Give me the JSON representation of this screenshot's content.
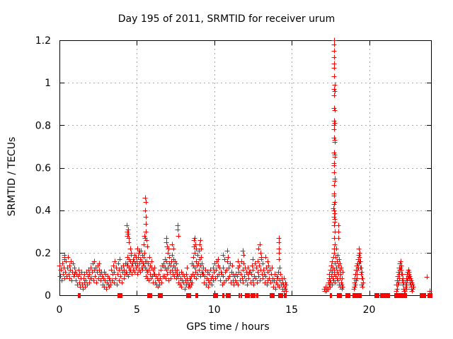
{
  "chart_data": {
    "type": "scatter",
    "title": "Day 195 of 2011, SRMTID for receiver urum",
    "xlabel": "GPS time / hours",
    "ylabel": "SRMTID / TECUs",
    "xlim": [
      0,
      24
    ],
    "ylim": [
      0,
      1.2
    ],
    "grid": true,
    "legend": "none",
    "marker": "plus",
    "marker_color": "#ff0000",
    "grid_color": "#a8a8a8",
    "axis_color": "#000000",
    "background_color": "#ffffff",
    "x_ticks": [
      {
        "v": 0,
        "l": "0"
      },
      {
        "v": 5,
        "l": "5"
      },
      {
        "v": 10,
        "l": "10"
      },
      {
        "v": 15,
        "l": "15"
      },
      {
        "v": 20,
        "l": "20"
      }
    ],
    "y_ticks": [
      {
        "v": 0,
        "l": "0"
      },
      {
        "v": 0.2,
        "l": "0.2"
      },
      {
        "v": 0.4,
        "l": "0.4"
      },
      {
        "v": 0.6,
        "l": "0.6"
      },
      {
        "v": 0.8,
        "l": "0.8"
      },
      {
        "v": 1,
        "l": "1"
      },
      {
        "v": 1.2,
        "l": "1.2"
      }
    ],
    "segments": [
      {
        "x0": 0.02,
        "dx": 0.04,
        "y": [
          0.14,
          0.09,
          0.12,
          0.07,
          0.15,
          0.1,
          0.13,
          0.08,
          0.17,
          0.11,
          0.16,
          0.09,
          0.13,
          0.18,
          0.1,
          0.14,
          0.08,
          0.12,
          0.16,
          0.07,
          0.11,
          0.15,
          0.09,
          0.13,
          0.1
        ]
      },
      {
        "x0": 1.02,
        "dx": 0.04,
        "y": [
          0.11,
          0.07,
          0.1,
          0.05,
          0.09,
          0.12,
          0.06,
          0.1,
          0.04,
          0.08,
          0.11,
          0.05,
          0.03,
          0.08,
          0.06,
          0.1,
          0.04,
          0.07,
          0.11,
          0.05,
          0.09,
          0.12,
          0.06,
          0.1,
          0.08
        ]
      },
      {
        "x0": 2.02,
        "dx": 0.04,
        "y": [
          0.13,
          0.08,
          0.11,
          0.15,
          0.07,
          0.12,
          0.16,
          0.09,
          0.13,
          0.06,
          0.11,
          0.14,
          0.08,
          0.12,
          0.15,
          0.1,
          0.07,
          0.11
        ]
      },
      {
        "x0": 2.74,
        "dx": 0.04,
        "y": [
          0.09,
          0.05,
          0.08,
          0.11,
          0.04,
          0.07,
          0.1,
          0.03,
          0.06,
          0.09,
          0.05,
          0.08,
          0.04,
          0.07,
          0.05
        ]
      },
      {
        "x0": 3.34,
        "dx": 0.04,
        "y": [
          0.12,
          0.07,
          0.1,
          0.14,
          0.06,
          0.11,
          0.16,
          0.08,
          0.13,
          0.05,
          0.1,
          0.15,
          0.07,
          0.12,
          0.17,
          0.09,
          0.13,
          0.06,
          0.11,
          0.14,
          0.08,
          0.12,
          0.1,
          0.15,
          0.11
        ]
      },
      {
        "x0": 4.32,
        "dx": 0.03,
        "y": [
          0.15,
          0.1,
          0.14,
          0.18,
          0.09,
          0.13,
          0.17,
          0.11,
          0.16,
          0.12,
          0.19,
          0.14,
          0.1,
          0.15
        ]
      },
      {
        "x0": 4.74,
        "dx": 0.03,
        "y": [
          0.17,
          0.12,
          0.16,
          0.19,
          0.11,
          0.15,
          0.18,
          0.13,
          0.16,
          0.1,
          0.14,
          0.18,
          0.12,
          0.2,
          0.15,
          0.11,
          0.17,
          0.21,
          0.13,
          0.16,
          0.19,
          0.12,
          0.15,
          0.18,
          0.14,
          0.2,
          0.16
        ]
      },
      {
        "x0": 5.54,
        "dx": 0.03,
        "y": [
          0.13,
          0.09,
          0.12,
          0.16,
          0.08,
          0.11,
          0.15,
          0.07,
          0.12,
          0.18,
          0.1,
          0.14,
          0.08,
          0.13,
          0.16,
          0.09,
          0.12,
          0.06,
          0.1,
          0.13
        ]
      },
      {
        "x0": 6.14,
        "dx": 0.04,
        "y": [
          0.1,
          0.06,
          0.09,
          0.05,
          0.08,
          0.04,
          0.07,
          0.1,
          0.05,
          0.08,
          0.12,
          0.06,
          0.14,
          0.09,
          0.15
        ]
      },
      {
        "x0": 6.74,
        "dx": 0.03,
        "y": [
          0.14,
          0.09,
          0.13,
          0.17,
          0.08,
          0.12,
          0.16,
          0.1,
          0.2,
          0.13,
          0.07,
          0.15,
          0.18,
          0.11,
          0.14,
          0.08,
          0.16,
          0.12,
          0.19,
          0.1,
          0.14,
          0.17,
          0.09,
          0.13,
          0.16,
          0.11,
          0.15,
          0.08,
          0.12,
          0.1
        ]
      },
      {
        "x0": 7.64,
        "dx": 0.04,
        "y": [
          0.09,
          0.06,
          0.1,
          0.05,
          0.08,
          0.11,
          0.04,
          0.07,
          0.1,
          0.06,
          0.09,
          0.03,
          0.07,
          0.1,
          0.05,
          0.08,
          0.06,
          0.04
        ]
      },
      {
        "x0": 8.36,
        "dx": 0.03,
        "y": [
          0.05,
          0.08,
          0.04,
          0.07,
          0.05,
          0.09,
          0.06
        ]
      },
      {
        "x0": 8.57,
        "dx": 0.03,
        "y": [
          0.15,
          0.1,
          0.14,
          0.18,
          0.09,
          0.13,
          0.2,
          0.11,
          0.16,
          0.08,
          0.14,
          0.19,
          0.1,
          0.15,
          0.21,
          0.12,
          0.17,
          0.09,
          0.14,
          0.18,
          0.11,
          0.15,
          0.1,
          0.13
        ]
      },
      {
        "x0": 9.3,
        "dx": 0.04,
        "y": [
          0.1,
          0.06,
          0.09,
          0.12,
          0.05,
          0.08,
          0.11,
          0.04,
          0.07,
          0.1,
          0.06,
          0.12,
          0.08,
          0.05,
          0.09,
          0.13,
          0.07,
          0.11,
          0.15,
          0.08,
          0.12,
          0.16,
          0.09,
          0.14,
          0.17,
          0.1,
          0.13,
          0.07,
          0.11
        ]
      },
      {
        "x0": 10.46,
        "dx": 0.04,
        "y": [
          0.1,
          0.05,
          0.09,
          0.13,
          0.06,
          0.17,
          0.11,
          0.07,
          0.12,
          0.16,
          0.08,
          0.18,
          0.13,
          0.09,
          0.15,
          0.06,
          0.11,
          0.14,
          0.07,
          0.1,
          0.05,
          0.09,
          0.07
        ]
      },
      {
        "x0": 11.38,
        "dx": 0.04,
        "y": [
          0.1,
          0.06,
          0.09,
          0.13,
          0.05,
          0.11,
          0.14,
          0.07,
          0.1,
          0.16,
          0.08,
          0.12,
          0.06,
          0.15,
          0.09,
          0.13,
          0.07,
          0.11,
          0.05,
          0.1,
          0.13,
          0.08,
          0.11
        ]
      },
      {
        "x0": 12.3,
        "dx": 0.04,
        "y": [
          0.11,
          0.06,
          0.1,
          0.14,
          0.07,
          0.12,
          0.05,
          0.09,
          0.15,
          0.08,
          0.13,
          0.06,
          0.11,
          0.16,
          0.09,
          0.14,
          0.07,
          0.12,
          0.17,
          0.1,
          0.15,
          0.08,
          0.12
        ]
      },
      {
        "x0": 13.22,
        "dx": 0.04,
        "y": [
          0.1,
          0.06,
          0.09,
          0.13,
          0.05,
          0.11,
          0.07,
          0.14,
          0.08,
          0.12,
          0.06,
          0.1,
          0.13,
          0.07
        ]
      },
      {
        "x0": 13.78,
        "dx": 0.04,
        "y": [
          0.08,
          0.04,
          0.07,
          0.1,
          0.03,
          0.06,
          0.09,
          0.05,
          0.08,
          0.11,
          0.04,
          0.07,
          0.1,
          0.05,
          0.08
        ]
      },
      {
        "x0": 14.38,
        "dx": 0.03,
        "y": [
          0.06,
          0.03,
          0.05,
          0.08,
          0.02,
          0.04,
          0.06,
          0.03,
          0.05,
          0.02
        ]
      },
      {
        "x0": 17.08,
        "dx": 0.05,
        "y": [
          0.03,
          0.02,
          0.04,
          0.02,
          0.03
        ]
      },
      {
        "x0": 17.36,
        "dx": 0.02,
        "y": [
          0.06,
          0.03,
          0.08,
          0.05,
          0.1,
          0.04,
          0.07,
          0.12,
          0.06,
          0.09,
          0.14,
          0.05,
          0.11,
          0.16,
          0.08,
          0.13,
          0.18,
          0.07,
          0.12,
          0.2,
          0.1,
          0.15,
          0.06,
          0.18,
          0.09,
          0.13,
          0.22,
          0.08,
          0.16,
          0.11,
          0.19,
          0.07,
          0.14,
          0.1,
          0.17,
          0.05,
          0.12,
          0.08,
          0.15,
          0.04,
          0.1,
          0.06,
          0.13,
          0.03,
          0.08,
          0.05,
          0.11,
          0.04
        ]
      },
      {
        "x0": 19.02,
        "dx": 0.02,
        "y": [
          0.03,
          0.06,
          0.04,
          0.08,
          0.05,
          0.1,
          0.07,
          0.12,
          0.08,
          0.14,
          0.1,
          0.15,
          0.12,
          0.17,
          0.13,
          0.19,
          0.15,
          0.2,
          0.16,
          0.18,
          0.13,
          0.16,
          0.1,
          0.13,
          0.08,
          0.11,
          0.05,
          0.08,
          0.04,
          0.06
        ]
      },
      {
        "x0": 21.76,
        "dx": 0.02,
        "y": [
          0.02,
          0.05,
          0.03,
          0.07,
          0.05,
          0.09,
          0.06,
          0.11,
          0.08,
          0.13,
          0.1,
          0.15,
          0.12,
          0.16,
          0.13,
          0.14,
          0.1,
          0.12,
          0.07,
          0.1,
          0.05,
          0.08,
          0.03,
          0.06,
          0.02
        ]
      },
      {
        "x0": 22.32,
        "dx": 0.02,
        "y": [
          0.02,
          0.04,
          0.06,
          0.03,
          0.08,
          0.05,
          0.1,
          0.07,
          0.11,
          0.08,
          0.12,
          0.09,
          0.11,
          0.08,
          0.1,
          0.06,
          0.09,
          0.05,
          0.08,
          0.04,
          0.07,
          0.03,
          0.06,
          0.02,
          0.05,
          0.03,
          0.04
        ]
      }
    ],
    "extra_points": [
      [
        0.3,
        0.19
      ],
      [
        0.34,
        0.18
      ],
      [
        4.36,
        0.33
      ],
      [
        4.38,
        0.3
      ],
      [
        4.4,
        0.28
      ],
      [
        4.42,
        0.29
      ],
      [
        4.45,
        0.31
      ],
      [
        4.48,
        0.27
      ],
      [
        4.5,
        0.25
      ],
      [
        4.55,
        0.22
      ],
      [
        4.6,
        0.2
      ],
      [
        5.05,
        0.22
      ],
      [
        5.15,
        0.21
      ],
      [
        5.54,
        0.46
      ],
      [
        5.56,
        0.44
      ],
      [
        5.55,
        0.4
      ],
      [
        5.57,
        0.37
      ],
      [
        5.56,
        0.335
      ],
      [
        5.58,
        0.3
      ],
      [
        5.53,
        0.27
      ],
      [
        5.45,
        0.24
      ],
      [
        5.48,
        0.28
      ],
      [
        5.62,
        0.26
      ],
      [
        5.68,
        0.23
      ],
      [
        6.88,
        0.27
      ],
      [
        6.9,
        0.25
      ],
      [
        6.93,
        0.23
      ],
      [
        7.05,
        0.22
      ],
      [
        7.28,
        0.24
      ],
      [
        7.35,
        0.22
      ],
      [
        7.62,
        0.33
      ],
      [
        7.65,
        0.31
      ],
      [
        7.68,
        0.28
      ],
      [
        8.24,
        0.13
      ],
      [
        8.68,
        0.23
      ],
      [
        8.7,
        0.26
      ],
      [
        8.74,
        0.27
      ],
      [
        8.78,
        0.24
      ],
      [
        8.84,
        0.22
      ],
      [
        9.05,
        0.24
      ],
      [
        9.1,
        0.26
      ],
      [
        9.15,
        0.22
      ],
      [
        10.56,
        0.19
      ],
      [
        10.85,
        0.21
      ],
      [
        10.88,
        0.18
      ],
      [
        11.52,
        0.16
      ],
      [
        11.86,
        0.21
      ],
      [
        11.9,
        0.19
      ],
      [
        12.5,
        0.17
      ],
      [
        12.86,
        0.22
      ],
      [
        12.94,
        0.24
      ],
      [
        13.0,
        0.2
      ],
      [
        13.05,
        0.18
      ],
      [
        13.3,
        0.18
      ],
      [
        13.45,
        0.16
      ],
      [
        14.15,
        0.27
      ],
      [
        14.17,
        0.25
      ],
      [
        14.16,
        0.22
      ],
      [
        14.18,
        0.2
      ],
      [
        14.19,
        0.17
      ],
      [
        14.21,
        0.13
      ],
      [
        17.72,
        1.2
      ],
      [
        17.74,
        1.18
      ],
      [
        17.73,
        1.15
      ],
      [
        17.75,
        1.12
      ],
      [
        17.74,
        1.09
      ],
      [
        17.75,
        1.07
      ],
      [
        17.73,
        1.03
      ],
      [
        17.76,
        0.99
      ],
      [
        17.74,
        0.97
      ],
      [
        17.77,
        0.96
      ],
      [
        17.75,
        0.94
      ],
      [
        17.73,
        0.88
      ],
      [
        17.78,
        0.87
      ],
      [
        17.74,
        0.82
      ],
      [
        17.76,
        0.81
      ],
      [
        17.72,
        0.8
      ],
      [
        17.75,
        0.78
      ],
      [
        17.73,
        0.74
      ],
      [
        17.77,
        0.73
      ],
      [
        17.8,
        0.72
      ],
      [
        17.74,
        0.67
      ],
      [
        17.76,
        0.66
      ],
      [
        17.78,
        0.65
      ],
      [
        17.73,
        0.62
      ],
      [
        17.75,
        0.61
      ],
      [
        17.74,
        0.58
      ],
      [
        17.76,
        0.55
      ],
      [
        17.78,
        0.54
      ],
      [
        17.74,
        0.52
      ],
      [
        17.72,
        0.48
      ],
      [
        17.75,
        0.47
      ],
      [
        17.77,
        0.44
      ],
      [
        17.73,
        0.43
      ],
      [
        17.68,
        0.41
      ],
      [
        17.74,
        0.4
      ],
      [
        17.78,
        0.385
      ],
      [
        17.75,
        0.37
      ],
      [
        17.8,
        0.36
      ],
      [
        17.76,
        0.345
      ],
      [
        17.73,
        0.33
      ],
      [
        17.79,
        0.3
      ],
      [
        17.75,
        0.27
      ],
      [
        17.77,
        0.24
      ],
      [
        17.74,
        0.22
      ],
      [
        18.0,
        0.33
      ],
      [
        18.03,
        0.3
      ],
      [
        18.01,
        0.27
      ],
      [
        19.32,
        0.22
      ],
      [
        23.72,
        0.085
      ],
      [
        23.9,
        0.02
      ]
    ],
    "zero_runs": [
      [
        1.25,
        "b"
      ],
      [
        1.32,
        "b"
      ],
      [
        3.93,
        "s"
      ],
      [
        5.85,
        "s"
      ],
      [
        6.5,
        "s"
      ],
      [
        8.35,
        "s"
      ],
      [
        8.8,
        "b"
      ],
      [
        8.9,
        "b"
      ],
      [
        10.1,
        "s"
      ],
      [
        10.55,
        "b"
      ],
      [
        10.62,
        "b"
      ],
      [
        10.9,
        "s"
      ],
      [
        11.6,
        "b"
      ],
      [
        11.75,
        "b"
      ],
      [
        12.15,
        "s"
      ],
      [
        12.5,
        "s"
      ],
      [
        12.75,
        "b"
      ],
      [
        12.82,
        "b"
      ],
      [
        13.75,
        "s"
      ],
      [
        14.18,
        "b"
      ],
      [
        14.3,
        "s"
      ],
      [
        14.55,
        "b"
      ],
      [
        14.62,
        "b"
      ],
      [
        17.5,
        "b"
      ],
      [
        17.56,
        "b"
      ],
      [
        18.1,
        "s"
      ],
      [
        18.65,
        "s"
      ],
      [
        19.08,
        "s"
      ],
      [
        19.16,
        "s"
      ],
      [
        19.4,
        "b"
      ],
      [
        19.46,
        "b"
      ],
      [
        20.5,
        "s"
      ],
      [
        20.85,
        "s"
      ],
      [
        21.2,
        "s"
      ],
      [
        21.8,
        "s"
      ],
      [
        22.0,
        "s"
      ],
      [
        22.3,
        "s"
      ],
      [
        23.42,
        "s"
      ],
      [
        23.52,
        "s"
      ],
      [
        23.85,
        "b"
      ],
      [
        23.95,
        "s"
      ]
    ]
  }
}
